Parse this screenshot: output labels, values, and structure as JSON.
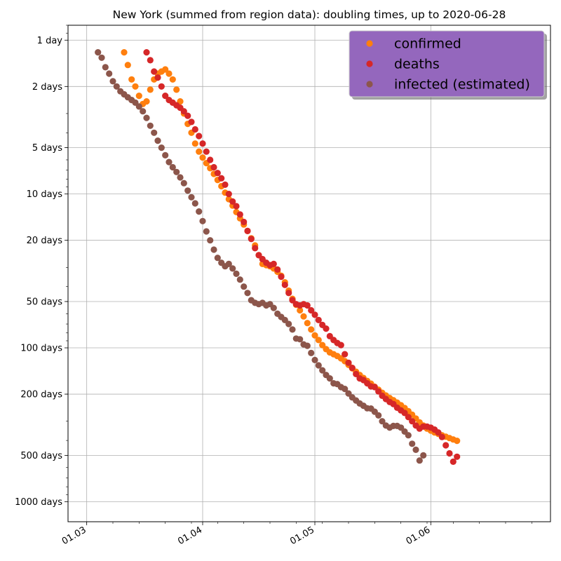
{
  "chart_data": {
    "type": "scatter",
    "title": "New York (summed from region data): doubling times, up to 2020-06-28",
    "xlabel": "",
    "ylabel": "",
    "x_axis": {
      "type": "date",
      "range": [
        "2020-02-25",
        "2020-07-03"
      ],
      "ticks": [
        "01.03",
        "01.04",
        "01.05",
        "01.06"
      ]
    },
    "y_axis": {
      "scale": "log",
      "inverted": true,
      "unit": "days",
      "range": [
        0.8,
        1350
      ],
      "ticks": [
        "1 day",
        "2 days",
        "5 days",
        "10 days",
        "20 days",
        "50 days",
        "100 days",
        "200 days",
        "500 days",
        "1000 days"
      ]
    },
    "grid": true,
    "legend": {
      "placement": "top-right",
      "background": "#9467bd"
    },
    "series": [
      {
        "name": "confirmed",
        "color": "#ff7f0e",
        "points": [
          [
            "2020-03-11",
            1.2
          ],
          [
            "2020-03-12",
            1.45
          ],
          [
            "2020-03-13",
            1.8
          ],
          [
            "2020-03-14",
            2.0
          ],
          [
            "2020-03-15",
            2.3
          ],
          [
            "2020-03-16",
            2.6
          ],
          [
            "2020-03-17",
            2.5
          ],
          [
            "2020-03-18",
            2.1
          ],
          [
            "2020-03-19",
            1.8
          ],
          [
            "2020-03-20",
            1.65
          ],
          [
            "2020-03-21",
            1.6
          ],
          [
            "2020-03-22",
            1.55
          ],
          [
            "2020-03-23",
            1.65
          ],
          [
            "2020-03-24",
            1.8
          ],
          [
            "2020-03-25",
            2.1
          ],
          [
            "2020-03-26",
            2.5
          ],
          [
            "2020-03-27",
            3.0
          ],
          [
            "2020-03-28",
            3.5
          ],
          [
            "2020-03-29",
            4.0
          ],
          [
            "2020-03-30",
            4.7
          ],
          [
            "2020-03-31",
            5.3
          ],
          [
            "2020-04-01",
            5.8
          ],
          [
            "2020-04-02",
            6.3
          ],
          [
            "2020-04-03",
            6.8
          ],
          [
            "2020-04-04",
            7.4
          ],
          [
            "2020-04-05",
            8.1
          ],
          [
            "2020-04-06",
            8.9
          ],
          [
            "2020-04-07",
            9.8
          ],
          [
            "2020-04-08",
            10.8
          ],
          [
            "2020-04-09",
            11.9
          ],
          [
            "2020-04-10",
            13.1
          ],
          [
            "2020-04-11",
            14.4
          ],
          [
            "2020-04-12",
            15.8
          ],
          [
            "2020-04-13",
            17.4
          ],
          [
            "2020-04-14",
            19.4
          ],
          [
            "2020-04-15",
            21.6
          ],
          [
            "2020-04-16",
            25.0
          ],
          [
            "2020-04-17",
            28.5
          ],
          [
            "2020-04-18",
            29.0
          ],
          [
            "2020-04-19",
            29.5
          ],
          [
            "2020-04-20",
            30.5
          ],
          [
            "2020-04-21",
            32
          ],
          [
            "2020-04-22",
            34
          ],
          [
            "2020-04-23",
            37.5
          ],
          [
            "2020-04-24",
            42.5
          ],
          [
            "2020-04-25",
            48.0
          ],
          [
            "2020-04-26",
            52.5
          ],
          [
            "2020-04-27",
            57.0
          ],
          [
            "2020-04-28",
            62.5
          ],
          [
            "2020-04-29",
            69
          ],
          [
            "2020-04-30",
            76
          ],
          [
            "2020-05-01",
            83
          ],
          [
            "2020-05-02",
            89
          ],
          [
            "2020-05-03",
            96
          ],
          [
            "2020-05-04",
            102
          ],
          [
            "2020-05-05",
            107
          ],
          [
            "2020-05-06",
            110
          ],
          [
            "2020-05-07",
            113
          ],
          [
            "2020-05-08",
            117
          ],
          [
            "2020-05-09",
            122
          ],
          [
            "2020-05-10",
            129
          ],
          [
            "2020-05-11",
            136
          ],
          [
            "2020-05-12",
            143
          ],
          [
            "2020-05-13",
            150
          ],
          [
            "2020-05-14",
            157
          ],
          [
            "2020-05-15",
            164
          ],
          [
            "2020-05-16",
            171
          ],
          [
            "2020-05-17",
            179
          ],
          [
            "2020-05-18",
            187
          ],
          [
            "2020-05-19",
            196
          ],
          [
            "2020-05-20",
            204
          ],
          [
            "2020-05-21",
            212
          ],
          [
            "2020-05-22",
            219
          ],
          [
            "2020-05-23",
            227
          ],
          [
            "2020-05-24",
            236
          ],
          [
            "2020-05-25",
            246
          ],
          [
            "2020-05-26",
            258
          ],
          [
            "2020-05-27",
            272
          ],
          [
            "2020-05-28",
            288
          ],
          [
            "2020-05-29",
            305
          ],
          [
            "2020-05-30",
            320
          ],
          [
            "2020-05-31",
            335
          ],
          [
            "2020-06-01",
            345
          ],
          [
            "2020-06-02",
            355
          ],
          [
            "2020-06-03",
            362
          ],
          [
            "2020-06-04",
            370
          ],
          [
            "2020-06-05",
            378
          ],
          [
            "2020-06-06",
            386
          ],
          [
            "2020-06-07",
            394
          ],
          [
            "2020-06-08",
            402
          ]
        ]
      },
      {
        "name": "deaths",
        "color": "#d62728",
        "points": [
          [
            "2020-03-17",
            1.2
          ],
          [
            "2020-03-18",
            1.35
          ],
          [
            "2020-03-19",
            1.6
          ],
          [
            "2020-03-20",
            1.75
          ],
          [
            "2020-03-21",
            2.0
          ],
          [
            "2020-03-22",
            2.3
          ],
          [
            "2020-03-23",
            2.45
          ],
          [
            "2020-03-24",
            2.55
          ],
          [
            "2020-03-25",
            2.65
          ],
          [
            "2020-03-26",
            2.75
          ],
          [
            "2020-03-27",
            2.9
          ],
          [
            "2020-03-28",
            3.1
          ],
          [
            "2020-03-29",
            3.4
          ],
          [
            "2020-03-30",
            3.8
          ],
          [
            "2020-03-31",
            4.2
          ],
          [
            "2020-04-01",
            4.7
          ],
          [
            "2020-04-02",
            5.3
          ],
          [
            "2020-04-03",
            6.0
          ],
          [
            "2020-04-04",
            6.7
          ],
          [
            "2020-04-05",
            7.3
          ],
          [
            "2020-04-06",
            7.9
          ],
          [
            "2020-04-07",
            8.7
          ],
          [
            "2020-04-08",
            10.0
          ],
          [
            "2020-04-09",
            11.2
          ],
          [
            "2020-04-10",
            12.0
          ],
          [
            "2020-04-11",
            13.6
          ],
          [
            "2020-04-12",
            15.2
          ],
          [
            "2020-04-13",
            17.4
          ],
          [
            "2020-04-14",
            19.6
          ],
          [
            "2020-04-15",
            22.5
          ],
          [
            "2020-04-16",
            25.0
          ],
          [
            "2020-04-17",
            26.5
          ],
          [
            "2020-04-18",
            28.0
          ],
          [
            "2020-04-19",
            29.0
          ],
          [
            "2020-04-20",
            28.5
          ],
          [
            "2020-04-21",
            31.0
          ],
          [
            "2020-04-22",
            34.5
          ],
          [
            "2020-04-23",
            39.0
          ],
          [
            "2020-04-24",
            44.0
          ],
          [
            "2020-04-25",
            49.0
          ],
          [
            "2020-04-26",
            52.0
          ],
          [
            "2020-04-27",
            53.0
          ],
          [
            "2020-04-28",
            52.0
          ],
          [
            "2020-04-29",
            53.0
          ],
          [
            "2020-04-30",
            57.0
          ],
          [
            "2020-05-01",
            61.0
          ],
          [
            "2020-05-02",
            66.0
          ],
          [
            "2020-05-03",
            71.0
          ],
          [
            "2020-05-04",
            75.0
          ],
          [
            "2020-05-05",
            84.0
          ],
          [
            "2020-05-06",
            89.0
          ],
          [
            "2020-05-07",
            93.0
          ],
          [
            "2020-05-08",
            96.0
          ],
          [
            "2020-05-09",
            110.0
          ],
          [
            "2020-05-10",
            125.0
          ],
          [
            "2020-05-11",
            135.0
          ],
          [
            "2020-05-12",
            148.0
          ],
          [
            "2020-05-13",
            158.0
          ],
          [
            "2020-05-14",
            162.0
          ],
          [
            "2020-05-15",
            170.0
          ],
          [
            "2020-05-16",
            178.0
          ],
          [
            "2020-05-17",
            180.0
          ],
          [
            "2020-05-18",
            192.0
          ],
          [
            "2020-05-19",
            205.0
          ],
          [
            "2020-05-20",
            215.0
          ],
          [
            "2020-05-21",
            225.0
          ],
          [
            "2020-05-22",
            232.0
          ],
          [
            "2020-05-23",
            245.0
          ],
          [
            "2020-05-24",
            255.0
          ],
          [
            "2020-05-25",
            265.0
          ],
          [
            "2020-05-26",
            282.0
          ],
          [
            "2020-05-27",
            300.0
          ],
          [
            "2020-05-28",
            320.0
          ],
          [
            "2020-05-29",
            335.0
          ],
          [
            "2020-05-30",
            325.0
          ],
          [
            "2020-05-31",
            325.0
          ],
          [
            "2020-06-01",
            330.0
          ],
          [
            "2020-06-02",
            340.0
          ],
          [
            "2020-06-03",
            355.0
          ],
          [
            "2020-06-04",
            380.0
          ],
          [
            "2020-06-05",
            430.0
          ],
          [
            "2020-06-06",
            485.0
          ],
          [
            "2020-06-07",
            550.0
          ],
          [
            "2020-06-08",
            510.0
          ]
        ]
      },
      {
        "name": "infected (estimated)",
        "color": "#8c564b",
        "points": [
          [
            "2020-03-04",
            1.2
          ],
          [
            "2020-03-05",
            1.3
          ],
          [
            "2020-03-06",
            1.5
          ],
          [
            "2020-03-07",
            1.65
          ],
          [
            "2020-03-08",
            1.85
          ],
          [
            "2020-03-09",
            2.0
          ],
          [
            "2020-03-10",
            2.15
          ],
          [
            "2020-03-11",
            2.25
          ],
          [
            "2020-03-12",
            2.35
          ],
          [
            "2020-03-13",
            2.45
          ],
          [
            "2020-03-14",
            2.55
          ],
          [
            "2020-03-15",
            2.7
          ],
          [
            "2020-03-16",
            2.9
          ],
          [
            "2020-03-17",
            3.2
          ],
          [
            "2020-03-18",
            3.6
          ],
          [
            "2020-03-19",
            4.0
          ],
          [
            "2020-03-20",
            4.5
          ],
          [
            "2020-03-21",
            5.0
          ],
          [
            "2020-03-22",
            5.6
          ],
          [
            "2020-03-23",
            6.2
          ],
          [
            "2020-03-24",
            6.7
          ],
          [
            "2020-03-25",
            7.2
          ],
          [
            "2020-03-26",
            7.8
          ],
          [
            "2020-03-27",
            8.5
          ],
          [
            "2020-03-28",
            9.5
          ],
          [
            "2020-03-29",
            10.5
          ],
          [
            "2020-03-30",
            11.5
          ],
          [
            "2020-03-31",
            13.0
          ],
          [
            "2020-04-01",
            15.0
          ],
          [
            "2020-04-02",
            17.5
          ],
          [
            "2020-04-03",
            20.0
          ],
          [
            "2020-04-04",
            23.0
          ],
          [
            "2020-04-05",
            26.0
          ],
          [
            "2020-04-06",
            28.0
          ],
          [
            "2020-04-07",
            29.5
          ],
          [
            "2020-04-08",
            28.5
          ],
          [
            "2020-04-09",
            30.5
          ],
          [
            "2020-04-10",
            33.0
          ],
          [
            "2020-04-11",
            36.0
          ],
          [
            "2020-04-12",
            40.0
          ],
          [
            "2020-04-13",
            44.0
          ],
          [
            "2020-04-14",
            49.0
          ],
          [
            "2020-04-15",
            51.0
          ],
          [
            "2020-04-16",
            52.0
          ],
          [
            "2020-04-17",
            51.0
          ],
          [
            "2020-04-18",
            53.0
          ],
          [
            "2020-04-19",
            52.0
          ],
          [
            "2020-04-20",
            55.0
          ],
          [
            "2020-04-21",
            60.0
          ],
          [
            "2020-04-22",
            63.0
          ],
          [
            "2020-04-23",
            66.0
          ],
          [
            "2020-04-24",
            70.0
          ],
          [
            "2020-04-25",
            76.0
          ],
          [
            "2020-04-26",
            87.0
          ],
          [
            "2020-04-27",
            88.0
          ],
          [
            "2020-04-28",
            95.0
          ],
          [
            "2020-04-29",
            97.0
          ],
          [
            "2020-04-30",
            108.0
          ],
          [
            "2020-05-01",
            120.0
          ],
          [
            "2020-05-02",
            130.0
          ],
          [
            "2020-05-03",
            140.0
          ],
          [
            "2020-05-04",
            150.0
          ],
          [
            "2020-05-05",
            158.0
          ],
          [
            "2020-05-06",
            170.0
          ],
          [
            "2020-05-07",
            172.0
          ],
          [
            "2020-05-08",
            180.0
          ],
          [
            "2020-05-09",
            185.0
          ],
          [
            "2020-05-10",
            198.0
          ],
          [
            "2020-05-11",
            210.0
          ],
          [
            "2020-05-12",
            220.0
          ],
          [
            "2020-05-13",
            230.0
          ],
          [
            "2020-05-14",
            238.0
          ],
          [
            "2020-05-15",
            247.0
          ],
          [
            "2020-05-16",
            248.0
          ],
          [
            "2020-05-17",
            260.0
          ],
          [
            "2020-05-18",
            275.0
          ],
          [
            "2020-05-19",
            300.0
          ],
          [
            "2020-05-20",
            320.0
          ],
          [
            "2020-05-21",
            330.0
          ],
          [
            "2020-05-22",
            322.0
          ],
          [
            "2020-05-23",
            322.0
          ],
          [
            "2020-05-24",
            330.0
          ],
          [
            "2020-05-25",
            350.0
          ],
          [
            "2020-05-26",
            370.0
          ],
          [
            "2020-05-27",
            420.0
          ],
          [
            "2020-05-28",
            460.0
          ],
          [
            "2020-05-29",
            540.0
          ],
          [
            "2020-05-30",
            500.0
          ]
        ]
      }
    ]
  }
}
